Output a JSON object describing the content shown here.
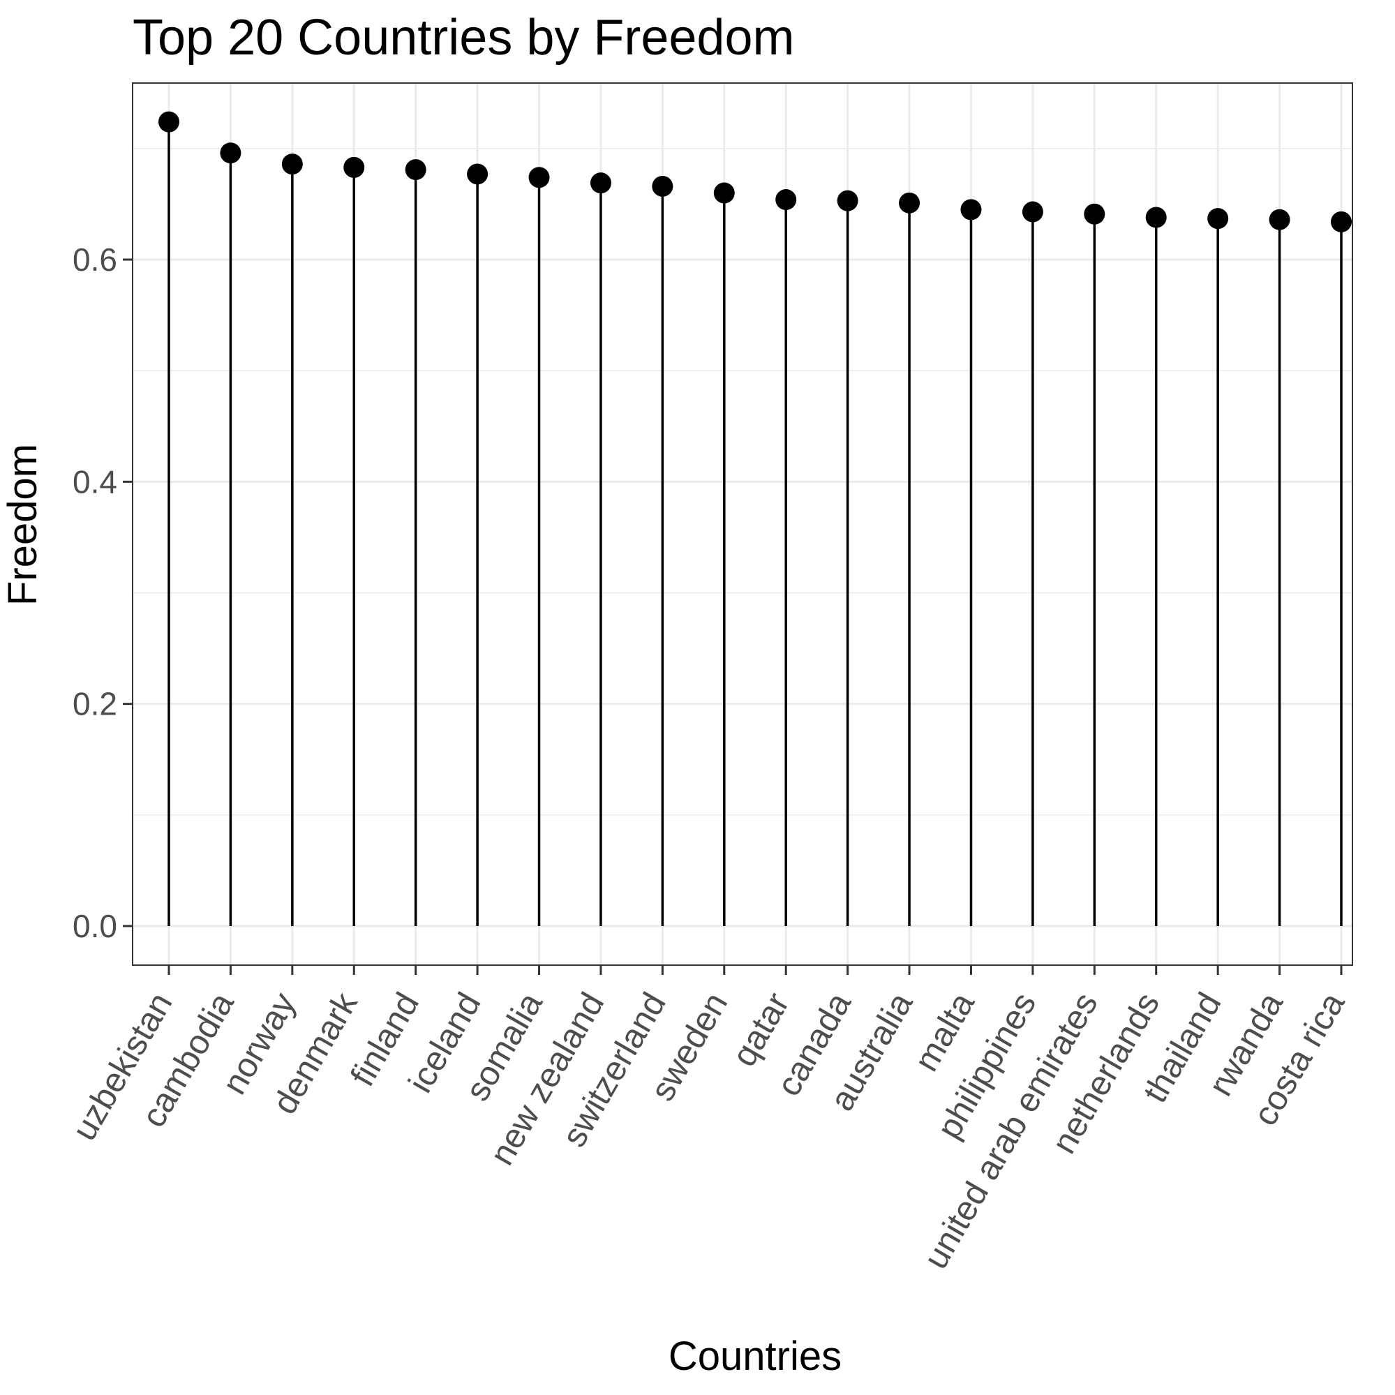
{
  "chart_data": {
    "type": "lollipop",
    "title": "Top 20 Countries by Freedom",
    "xlabel": "Countries",
    "ylabel": "Freedom",
    "ylim": [
      -0.035,
      0.76
    ],
    "yticks": [
      0.0,
      0.2,
      0.4,
      0.6
    ],
    "ytick_labels": [
      "0.0",
      "0.2",
      "0.4",
      "0.6"
    ],
    "grid": true,
    "x_label_rotation_deg": -60,
    "categories": [
      "uzbekistan",
      "cambodia",
      "norway",
      "denmark",
      "finland",
      "iceland",
      "somalia",
      "new zealand",
      "switzerland",
      "sweden",
      "qatar",
      "canada",
      "australia",
      "malta",
      "philippines",
      "united arab emirates",
      "netherlands",
      "thailand",
      "rwanda",
      "costa rica"
    ],
    "values": [
      0.724,
      0.696,
      0.686,
      0.683,
      0.681,
      0.677,
      0.674,
      0.669,
      0.666,
      0.66,
      0.654,
      0.653,
      0.651,
      0.645,
      0.643,
      0.641,
      0.638,
      0.637,
      0.636,
      0.634
    ],
    "colors": {
      "mark": "#000000",
      "grid": "#ebebeb",
      "tick_text": "#4d4d4d",
      "border": "#333333"
    }
  }
}
